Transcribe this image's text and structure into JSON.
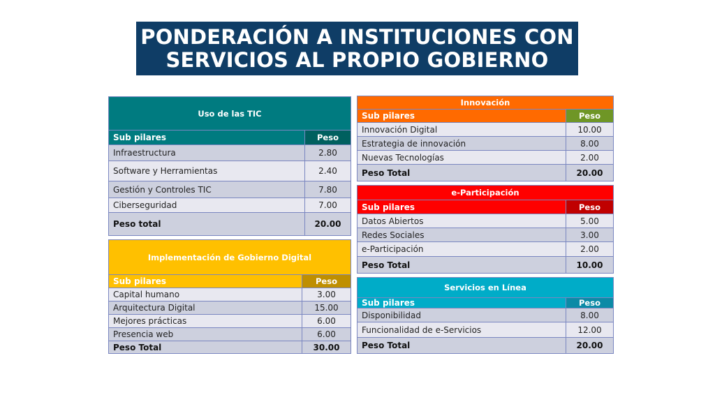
{
  "title": {
    "line1": "PONDERACIÓN A INSTITUCIONES CON",
    "line2": "SERVICIOS AL PROPIO  GOBIERNO",
    "background": "#0f3d66"
  },
  "tables": [
    {
      "id": "uso-tic",
      "title": "Uso de las TIC",
      "header": [
        "Sub pilares",
        "Peso"
      ],
      "colors": {
        "title": "#007b80",
        "header": "#007b80",
        "peso_header": "#00605f"
      },
      "rows": [
        [
          "Infraestructura",
          "2.80"
        ],
        [
          "Software y Herramientas",
          "2.40"
        ],
        [
          "Gestión y Controles TIC",
          "7.80"
        ],
        [
          "Ciberseguridad",
          "7.00"
        ]
      ],
      "total": [
        "Peso total",
        "20.00"
      ]
    },
    {
      "id": "implementacion",
      "title": "Implementación de Gobierno Digital",
      "header": [
        "Sub pilares",
        "Peso"
      ],
      "colors": {
        "title": "#ffc000",
        "header": "#ffc000",
        "peso_header": "#bf8f00"
      },
      "rows": [
        [
          "Capital humano",
          "3.00"
        ],
        [
          "Arquitectura Digital",
          "15.00"
        ],
        [
          "Mejores prácticas",
          "6.00"
        ],
        [
          "Presencia web",
          "6.00"
        ]
      ],
      "total": [
        "Peso Total",
        "30.00"
      ]
    },
    {
      "id": "innovacion",
      "title": "Innovación",
      "header": [
        "Sub pilares",
        "Peso"
      ],
      "colors": {
        "title": "#ff6a00",
        "header": "#ff6a00",
        "peso_header": "#6f9626"
      },
      "rows": [
        [
          "Innovación Digital",
          "10.00"
        ],
        [
          "Estrategia de innovación",
          "8.00"
        ],
        [
          "Nuevas Tecnologías",
          "2.00"
        ]
      ],
      "total": [
        "Peso Total",
        "20.00"
      ]
    },
    {
      "id": "e-participacion",
      "title": "e-Participación",
      "header": [
        "Sub pilares",
        "Peso"
      ],
      "colors": {
        "title": "#ff0000",
        "header": "#ff0000",
        "peso_header": "#c00000"
      },
      "rows": [
        [
          "Datos Abiertos",
          "5.00"
        ],
        [
          "Redes Sociales",
          "3.00"
        ],
        [
          "e-Participación",
          "2.00"
        ]
      ],
      "total": [
        "Peso Total",
        "10.00"
      ]
    },
    {
      "id": "servicios-en-linea",
      "title": "Servicios en Línea",
      "header": [
        "Sub pilares",
        "Peso"
      ],
      "colors": {
        "title": "#00acc8",
        "header": "#00acc8",
        "peso_header": "#0b8aa6"
      },
      "rows": [
        [
          "Disponibilidad",
          "8.00"
        ],
        [
          "Funcionalidad de e-Servicios",
          "12.00"
        ]
      ],
      "total": [
        "Peso Total",
        "20.00"
      ]
    }
  ]
}
